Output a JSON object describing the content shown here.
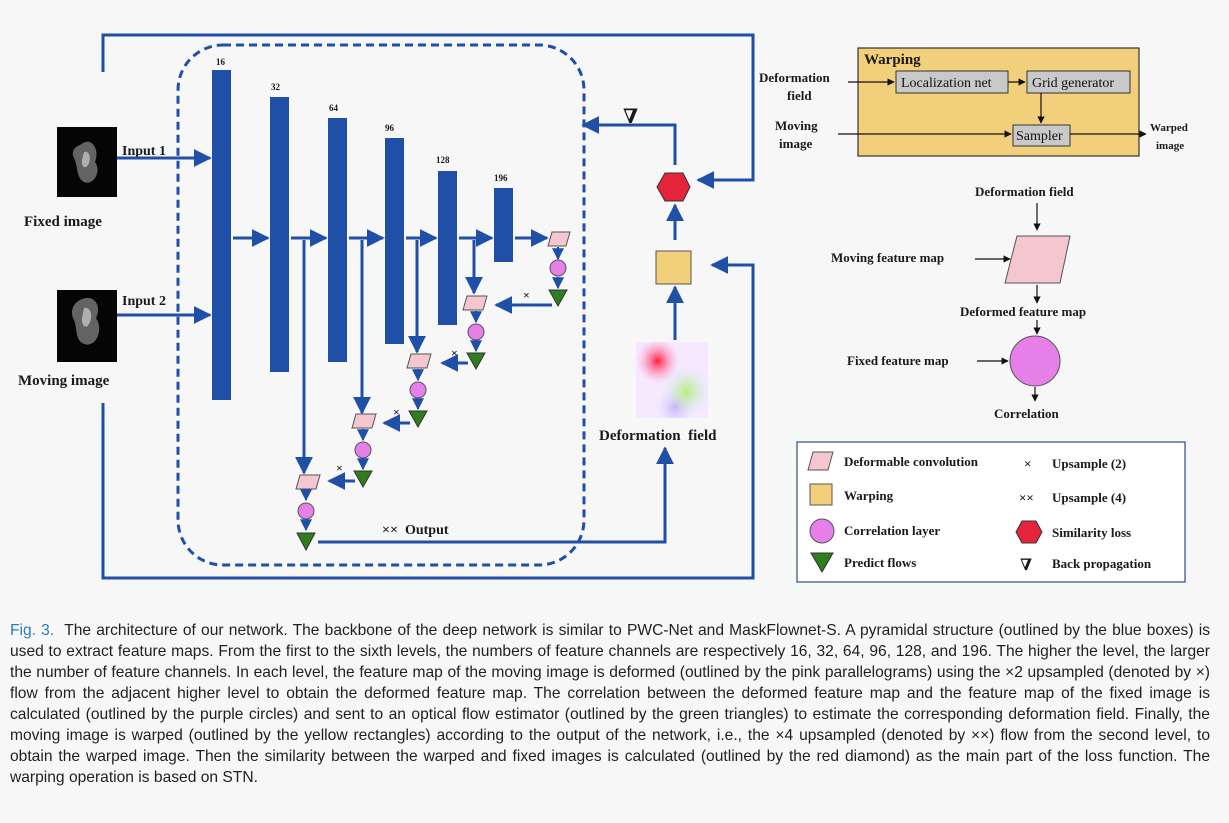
{
  "warping_box": {
    "title": "Warping",
    "localization_net": "Localization net",
    "grid_generator": "Grid generator",
    "sampler": "Sampler",
    "deformation_field_input": [
      "Deformation",
      "field"
    ],
    "moving_image_input": [
      "Moving",
      "image"
    ],
    "warped_image_output": [
      "Warped",
      "image"
    ]
  },
  "left_panel": {
    "fixed_image": "Fixed image",
    "moving_image": "Moving image",
    "input1": "Input 1",
    "input2": "Input 2"
  },
  "levels": [
    {
      "channels": "16"
    },
    {
      "channels": "32"
    },
    {
      "channels": "64"
    },
    {
      "channels": "96"
    },
    {
      "channels": "128"
    },
    {
      "channels": "196"
    }
  ],
  "upsample2_symbol": "×",
  "output_label": "××  Output",
  "nabla_symbol": "∇",
  "deformation_field_label": "Deformation  field",
  "correlation_diagram": {
    "deformation_field": "Deformation field",
    "moving_feature_map": "Moving feature map",
    "deformed_feature_map": "Deformed feature map",
    "fixed_feature_map": "Fixed feature map",
    "correlation": "Correlation"
  },
  "legend": {
    "deformable_convolution": "Deformable convolution",
    "upsample2_symbol": "×",
    "upsample2": "Upsample (2)",
    "warping": "Warping",
    "upsample4_symbol": "××",
    "upsample4": "Upsample (4)",
    "correlation_layer": "Correlation layer",
    "similarity_loss": "Similarity loss",
    "predict_flows": "Predict flows",
    "back_propagation_symbol": "∇",
    "back_propagation": "Back propagation"
  },
  "colors": {
    "network_blue": "#1f4fa6",
    "warping_yellow": "#f2cf7a",
    "deform_pink": "#f4c6cf",
    "correlation_purple": "#e67fe8",
    "predict_green": "#2f7d1e",
    "similarity_red": "#e5243b",
    "caption_label_blue": "#2a7bbf"
  },
  "caption": {
    "label": "Fig. 3.",
    "text": "The architecture of our network. The backbone of the deep network is similar to PWC-Net and MaskFlownet-S. A pyramidal structure (outlined by the blue boxes) is used to extract feature maps. From the first to the sixth levels, the numbers of feature channels are respectively 16, 32, 64, 96, 128, and 196. The higher the level, the larger the number of feature channels. In each level, the feature map of the moving image is deformed (outlined by the pink parallelograms) using the ×2 upsampled (denoted by ×) flow from the adjacent higher level to obtain the deformed feature map. The correlation between the deformed feature map and the feature map of the fixed image is calculated (outlined by the purple circles) and sent to an optical flow estimator (outlined by the green triangles) to estimate the corresponding deformation field. Finally, the moving image is warped (outlined by the yellow rectangles) according to the output of the network, i.e., the ×4 upsampled (denoted by ××) flow from the second level, to obtain the warped image. Then the similarity between the warped and fixed images is calculated (outlined by the red diamond) as the main part of the loss function. The warping operation is based on STN."
  }
}
